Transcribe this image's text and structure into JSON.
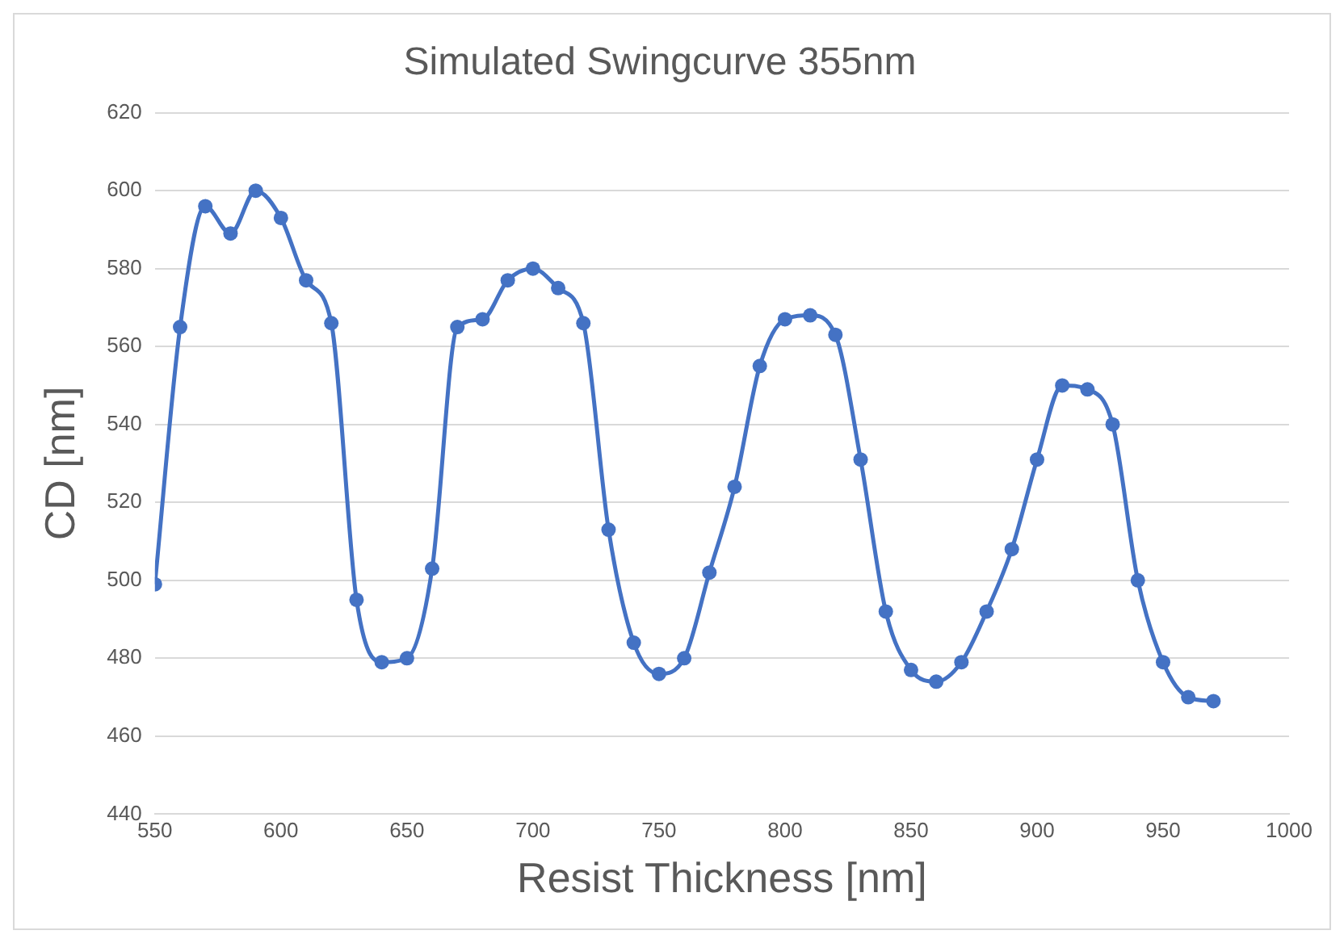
{
  "chart_data": {
    "type": "line",
    "title": "Simulated Swingcurve 355nm",
    "xlabel": "Resist Thickness [nm]",
    "ylabel": "CD [nm]",
    "x": [
      550,
      560,
      570,
      580,
      590,
      600,
      610,
      620,
      630,
      640,
      650,
      660,
      670,
      680,
      690,
      700,
      710,
      720,
      730,
      740,
      750,
      760,
      770,
      780,
      790,
      800,
      810,
      820,
      830,
      840,
      850,
      860,
      870,
      880,
      890,
      900,
      910,
      920,
      930,
      940,
      950,
      960,
      970
    ],
    "series": [
      {
        "color": "#4472c4",
        "values": [
          499,
          565,
          596,
          589,
          600,
          593,
          577,
          566,
          495,
          479,
          480,
          503,
          565,
          567,
          577,
          580,
          575,
          566,
          513,
          484,
          476,
          480,
          502,
          524,
          555,
          567,
          568,
          563,
          531,
          492,
          477,
          474,
          479,
          492,
          508,
          531,
          550,
          549,
          540,
          500,
          479,
          470,
          469
        ]
      }
    ],
    "xlim": [
      550,
      1000
    ],
    "xticks": [
      550,
      600,
      650,
      700,
      750,
      800,
      850,
      900,
      950,
      1000
    ],
    "ylim": [
      440,
      620
    ],
    "yticks": [
      440,
      460,
      480,
      500,
      520,
      540,
      560,
      580,
      600,
      620
    ],
    "grid": "y",
    "legend": false,
    "marker": "circle",
    "line_style": "solid"
  }
}
